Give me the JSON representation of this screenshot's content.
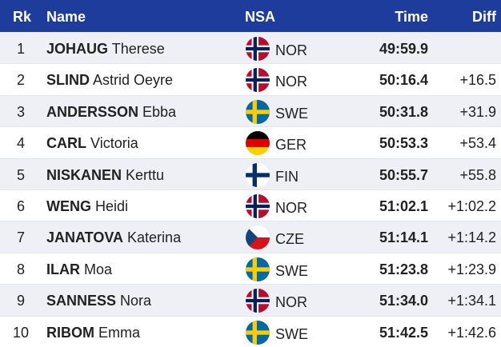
{
  "header": {
    "rank": "Rk",
    "name": "Name",
    "nsa": "NSA",
    "time": "Time",
    "diff": "Diff"
  },
  "rows": [
    {
      "rank": "1",
      "surname": "JOHAUG",
      "given": "Therese",
      "nsa": "NOR",
      "time": "49:59.9"
    },
    {
      "rank": "2",
      "surname": "SLIND",
      "given": "Astrid Oeyre",
      "nsa": "NOR",
      "time": "50:16.4",
      "diff": "+16.5"
    },
    {
      "rank": "3",
      "surname": "ANDERSSON",
      "given": "Ebba",
      "nsa": "SWE",
      "time": "50:31.8",
      "diff": "+31.9"
    },
    {
      "rank": "4",
      "surname": "CARL",
      "given": "Victoria",
      "nsa": "GER",
      "time": "50:53.3",
      "diff": "+53.4"
    },
    {
      "rank": "5",
      "surname": "NISKANEN",
      "given": "Kerttu",
      "nsa": "FIN",
      "time": "50:55.7",
      "diff": "+55.8"
    },
    {
      "rank": "6",
      "surname": "WENG",
      "given": "Heidi",
      "nsa": "NOR",
      "time": "51:02.1",
      "diff": "+1:02.2"
    },
    {
      "rank": "7",
      "surname": "JANATOVA",
      "given": "Katerina",
      "nsa": "CZE",
      "time": "51:14.1",
      "diff": "+1:14.2"
    },
    {
      "rank": "8",
      "surname": "ILAR",
      "given": "Moa",
      "nsa": "SWE",
      "time": "51:23.8",
      "diff": "+1:23.9"
    },
    {
      "rank": "9",
      "surname": "SANNESS",
      "given": "Nora",
      "nsa": "NOR",
      "time": "51:34.0",
      "diff": "+1:34.1"
    },
    {
      "rank": "10",
      "surname": "RIBOM",
      "given": "Emma",
      "nsa": "SWE",
      "time": "51:42.5",
      "diff": "+1:42.6"
    }
  ]
}
